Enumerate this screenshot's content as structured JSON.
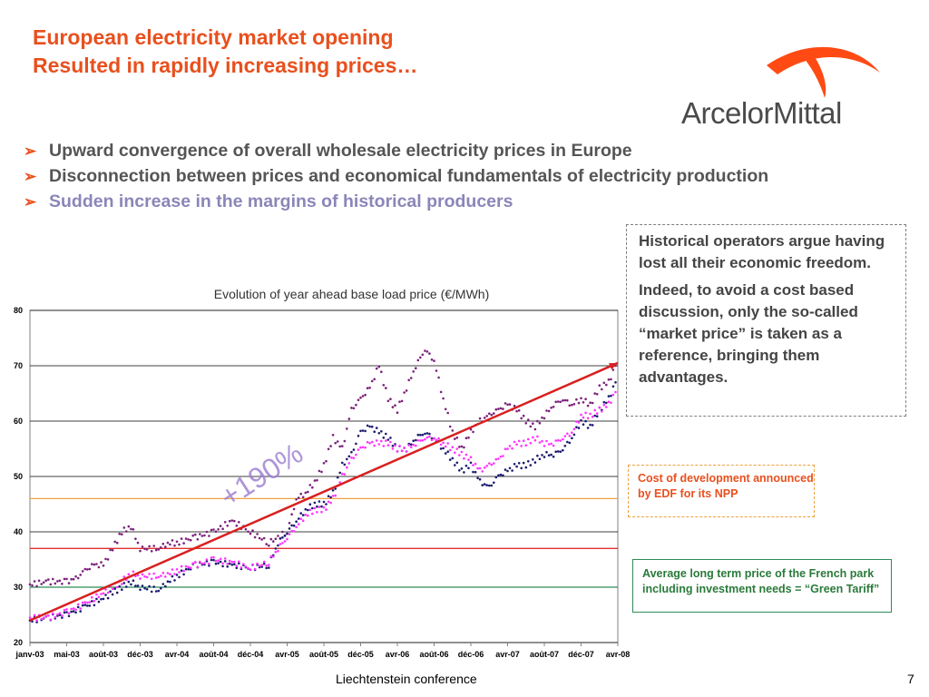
{
  "slide": {
    "title_line1": "European electricity market opening",
    "title_line2": "Resulted in rapidly increasing prices…",
    "logo_text": "ArcelorMittal",
    "bullets": [
      "Upward convergence of overall wholesale electricity prices in Europe",
      "Disconnection between prices and economical fundamentals of electricity production",
      "Sudden increase in the margins of historical producers"
    ],
    "bullet_marker": "➢",
    "note_main_p1": "Historical operators argue having lost all their economic freedom.",
    "note_main_p2": "Indeed, to avoid a cost based discussion, only the so-called “market price” is taken as a reference, bringing them advantages.",
    "note_edf": "Cost of development announced by EDF for its NPP",
    "note_green": "Average long term price of the French park including investment needs = “Green Tariff”",
    "footer": "Liechtenstein conference",
    "page_number": "7"
  },
  "colors": {
    "title": "#e8501e",
    "accent_orange": "#f0a040",
    "red_line": "#e03030",
    "green_line": "#2e8b57",
    "series_purple": "#7a1f7a",
    "series_navy": "#1a1a6e",
    "series_magenta": "#ff33ff",
    "trend_arrow": "#d82020"
  },
  "chart_data": {
    "type": "scatter",
    "title": "Evolution of year ahead base load price (€/MWh)",
    "xlabel": "",
    "ylabel": "",
    "ylim": [
      20,
      80
    ],
    "yticks": [
      20,
      30,
      40,
      50,
      60,
      70,
      80
    ],
    "x_tick_labels": [
      "janv-03",
      "mai-03",
      "août-03",
      "déc-03",
      "avr-04",
      "août-04",
      "déc-04",
      "avr-05",
      "août-05",
      "déc-05",
      "avr-06",
      "août-06",
      "déc-06",
      "avr-07",
      "août-07",
      "déc-07",
      "avr-08"
    ],
    "x_unit": "months since janv-03, ticks every 4 months",
    "grid": true,
    "annotation": "+190%",
    "trend_arrow": {
      "from": [
        0,
        24
      ],
      "to": [
        64,
        70.5
      ]
    },
    "reference_lines": [
      {
        "value": 46,
        "color": "#f0a040",
        "label": "Cost of development announced by EDF for its NPP"
      },
      {
        "value": 37,
        "color": "#e03030",
        "label": ""
      },
      {
        "value": 30,
        "color": "#2e8b57",
        "label": "Average long term price of the French park including investment needs = “Green Tariff”"
      }
    ],
    "series": [
      {
        "color": "#7a1f7a",
        "points": [
          [
            0,
            30.5
          ],
          [
            2,
            31
          ],
          [
            4,
            31
          ],
          [
            5,
            31.5
          ],
          [
            6,
            33
          ],
          [
            7,
            34
          ],
          [
            8,
            34
          ],
          [
            9,
            37
          ],
          [
            10,
            40
          ],
          [
            11,
            41
          ],
          [
            12,
            37
          ],
          [
            14,
            37
          ],
          [
            15,
            38
          ],
          [
            16,
            38
          ],
          [
            18,
            39
          ],
          [
            20,
            40
          ],
          [
            22,
            42
          ],
          [
            24,
            40
          ],
          [
            26,
            38
          ],
          [
            28,
            40
          ],
          [
            29,
            46
          ],
          [
            30,
            47
          ],
          [
            31,
            49
          ],
          [
            32,
            52
          ],
          [
            33,
            57
          ],
          [
            34,
            55
          ],
          [
            35,
            62
          ],
          [
            36,
            64
          ],
          [
            37,
            66
          ],
          [
            38,
            70
          ],
          [
            39,
            64
          ],
          [
            40,
            62
          ],
          [
            41,
            66
          ],
          [
            42,
            70
          ],
          [
            43,
            73
          ],
          [
            44,
            71
          ],
          [
            45,
            64
          ],
          [
            46,
            58
          ],
          [
            47,
            55
          ],
          [
            48,
            58
          ],
          [
            49,
            60
          ],
          [
            50,
            61
          ],
          [
            51,
            62
          ],
          [
            52,
            63
          ],
          [
            53,
            62
          ],
          [
            54,
            60
          ],
          [
            55,
            59
          ],
          [
            56,
            61
          ],
          [
            57,
            63
          ],
          [
            58,
            64
          ],
          [
            59,
            63
          ],
          [
            60,
            64
          ],
          [
            61,
            63
          ],
          [
            62,
            66
          ],
          [
            63,
            67
          ],
          [
            64,
            71
          ]
        ]
      },
      {
        "color": "#1a1a6e",
        "points": [
          [
            0,
            24
          ],
          [
            2,
            24.5
          ],
          [
            4,
            25
          ],
          [
            6,
            26.5
          ],
          [
            8,
            28
          ],
          [
            9,
            29
          ],
          [
            10,
            30
          ],
          [
            11,
            31
          ],
          [
            12,
            30
          ],
          [
            14,
            29.5
          ],
          [
            15,
            31
          ],
          [
            16,
            32
          ],
          [
            18,
            34
          ],
          [
            20,
            34.5
          ],
          [
            22,
            34
          ],
          [
            24,
            33.5
          ],
          [
            26,
            34
          ],
          [
            27,
            38
          ],
          [
            28,
            40
          ],
          [
            29,
            42
          ],
          [
            30,
            44
          ],
          [
            31,
            45
          ],
          [
            32,
            45
          ],
          [
            33,
            47
          ],
          [
            34,
            52
          ],
          [
            35,
            54
          ],
          [
            36,
            58
          ],
          [
            37,
            59
          ],
          [
            38,
            58
          ],
          [
            39,
            57
          ],
          [
            40,
            55
          ],
          [
            41,
            55
          ],
          [
            42,
            57
          ],
          [
            43,
            58
          ],
          [
            44,
            57
          ],
          [
            45,
            55
          ],
          [
            46,
            53
          ],
          [
            47,
            51
          ],
          [
            48,
            52
          ],
          [
            49,
            49
          ],
          [
            50,
            48
          ],
          [
            51,
            50
          ],
          [
            52,
            51
          ],
          [
            53,
            52
          ],
          [
            54,
            52
          ],
          [
            55,
            53
          ],
          [
            56,
            54
          ],
          [
            57,
            54
          ],
          [
            58,
            55
          ],
          [
            59,
            57
          ],
          [
            60,
            60
          ],
          [
            61,
            59
          ],
          [
            62,
            62
          ],
          [
            63,
            64
          ],
          [
            64,
            68
          ]
        ]
      },
      {
        "color": "#ff33ff",
        "points": [
          [
            0,
            24.5
          ],
          [
            2,
            24.5
          ],
          [
            4,
            25.5
          ],
          [
            6,
            27
          ],
          [
            8,
            29
          ],
          [
            9,
            30
          ],
          [
            10,
            31
          ],
          [
            11,
            32.5
          ],
          [
            12,
            32
          ],
          [
            14,
            32
          ],
          [
            15,
            32.5
          ],
          [
            16,
            33
          ],
          [
            18,
            34
          ],
          [
            20,
            35
          ],
          [
            22,
            34.5
          ],
          [
            24,
            33.5
          ],
          [
            26,
            34.5
          ],
          [
            27,
            37
          ],
          [
            28,
            39
          ],
          [
            29,
            41
          ],
          [
            30,
            43
          ],
          [
            31,
            44
          ],
          [
            32,
            44
          ],
          [
            33,
            46
          ],
          [
            34,
            50
          ],
          [
            35,
            53
          ],
          [
            36,
            55
          ],
          [
            37,
            56
          ],
          [
            38,
            56
          ],
          [
            39,
            56
          ],
          [
            40,
            55
          ],
          [
            41,
            55
          ],
          [
            42,
            56
          ],
          [
            43,
            57
          ],
          [
            44,
            57
          ],
          [
            45,
            56
          ],
          [
            46,
            55
          ],
          [
            47,
            54
          ],
          [
            48,
            53
          ],
          [
            49,
            51
          ],
          [
            50,
            52
          ],
          [
            51,
            53
          ],
          [
            52,
            55
          ],
          [
            53,
            56
          ],
          [
            54,
            56
          ],
          [
            55,
            57
          ],
          [
            56,
            56
          ],
          [
            57,
            56
          ],
          [
            58,
            57
          ],
          [
            59,
            58
          ],
          [
            60,
            61
          ],
          [
            61,
            61
          ],
          [
            62,
            62
          ],
          [
            63,
            63
          ],
          [
            64,
            66
          ]
        ]
      }
    ]
  }
}
